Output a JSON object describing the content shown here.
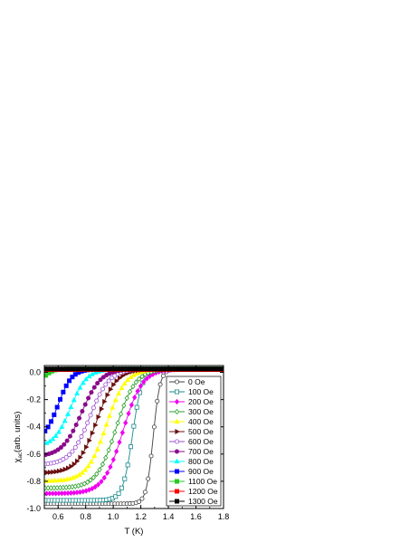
{
  "chart_data": {
    "type": "line",
    "title": "",
    "xlabel": "T (K)",
    "ylabel": "χ_ac (arb. units)",
    "ylabel_main": "χ",
    "ylabel_sub": "ac",
    "ylabel_rest": "(arb. units)",
    "xlim": [
      0.5,
      1.8
    ],
    "ylim": [
      -1.0,
      0.05
    ],
    "xticks": [
      0.6,
      0.8,
      1.0,
      1.2,
      1.4,
      1.6,
      1.8
    ],
    "xtick_labels": [
      "0.6",
      "0.8",
      "1.0",
      "1.2",
      "1.4",
      "1.6",
      "1.8"
    ],
    "yticks": [
      0.0,
      -0.2,
      -0.4,
      -0.6,
      -0.8,
      -1.0
    ],
    "ytick_labels": [
      "0.0",
      "-0.2",
      "-0.4",
      "-0.6",
      "-0.8",
      "-1.0"
    ],
    "grid": false,
    "legend_position": "right",
    "series": [
      {
        "name": "0 Oe",
        "color": "#404040",
        "marker": "circle-open",
        "Tc": 1.29,
        "width": 0.025,
        "low": -0.965,
        "high": 0.025
      },
      {
        "name": "100 Oe",
        "color": "#1a8a8a",
        "marker": "square-open",
        "Tc": 1.14,
        "width": 0.035,
        "low": -0.94,
        "high": 0.025
      },
      {
        "name": "200 Oe",
        "color": "#ee00ee",
        "marker": "diamond",
        "Tc": 1.07,
        "width": 0.07,
        "low": -0.89,
        "high": 0.025
      },
      {
        "name": "300 Oe",
        "color": "#2ca02c",
        "marker": "diamond-open",
        "Tc": 1.02,
        "width": 0.07,
        "low": -0.85,
        "high": 0.025
      },
      {
        "name": "400 Oe",
        "color": "#ffff00",
        "marker": "triangle",
        "Tc": 0.95,
        "width": 0.07,
        "low": -0.8,
        "high": 0.025
      },
      {
        "name": "500 Oe",
        "color": "#6b1010",
        "marker": "triangle-right",
        "Tc": 0.88,
        "width": 0.07,
        "low": -0.74,
        "high": 0.025
      },
      {
        "name": "600 Oe",
        "color": "#9a4fd1",
        "marker": "circle-open",
        "Tc": 0.83,
        "width": 0.07,
        "low": -0.68,
        "high": 0.025
      },
      {
        "name": "700 Oe",
        "color": "#8b0a8b",
        "marker": "circle",
        "Tc": 0.77,
        "width": 0.07,
        "low": -0.62,
        "high": 0.025
      },
      {
        "name": "800 Oe",
        "color": "#00ffff",
        "marker": "triangle",
        "Tc": 0.69,
        "width": 0.06,
        "low": -0.55,
        "high": 0.025
      },
      {
        "name": "900 Oe",
        "color": "#0000ff",
        "marker": "square",
        "Tc": 0.6,
        "width": 0.05,
        "low": -0.5,
        "high": 0.025
      },
      {
        "name": "1100 Oe",
        "color": "#22cc22",
        "marker": "square",
        "Tc": 0.505,
        "width": 0.03,
        "low": -0.08,
        "high": 0.025
      },
      {
        "name": "1200 Oe",
        "color": "#ff0000",
        "marker": "square",
        "Tc": 0.0,
        "width": 0.03,
        "low": 0.02,
        "high": 0.02
      },
      {
        "name": "1300 Oe",
        "color": "#000000",
        "marker": "square",
        "Tc": 0.0,
        "width": 0.03,
        "low": 0.025,
        "high": 0.025
      }
    ]
  }
}
